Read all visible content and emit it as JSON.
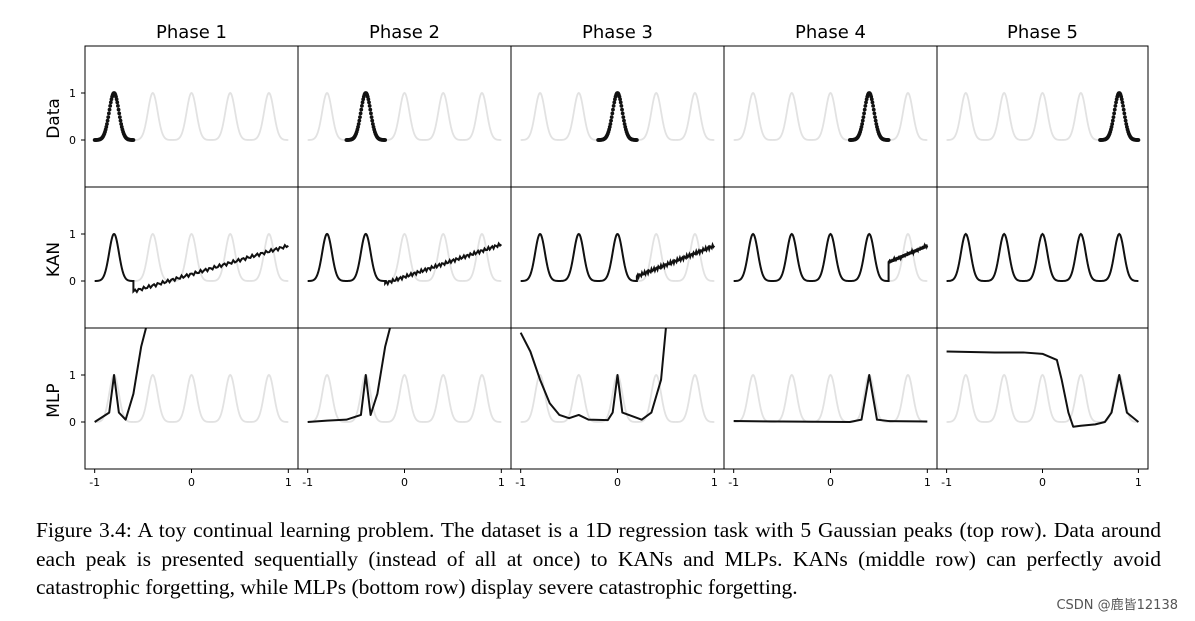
{
  "figure": {
    "phase_titles": [
      "Phase 1",
      "Phase 2",
      "Phase 3",
      "Phase 4",
      "Phase 5"
    ],
    "row_labels": [
      "Data",
      "KAN",
      "MLP"
    ],
    "x_tick_labels": [
      "-1",
      "0",
      "1"
    ],
    "y_tick_labels": [
      "0",
      "1"
    ]
  },
  "caption": {
    "text": "Figure 3.4: A toy continual learning problem. The dataset is a 1D regression task with 5 Gaussian peaks (top row). Data around each peak is presented sequentially (instead of all at once) to KANs and MLPs. KANs (middle row) can perfectly avoid catastrophic forgetting, while MLPs (bottom row) display severe catastrophic forgetting."
  },
  "watermark": "CSDN @鹿皆12138",
  "colors": {
    "ghost": "#e2e2e2",
    "line": "#111111"
  },
  "chart_data": {
    "type": "line",
    "title": "",
    "x_range": [
      -1.1,
      1.1
    ],
    "y_range": [
      -1.0,
      2.0
    ],
    "x_ticks": [
      -1,
      0,
      1
    ],
    "y_ticks": [
      0,
      1
    ],
    "gaussian_peaks": {
      "centers": [
        -0.8,
        -0.4,
        0.0,
        0.4,
        0.8
      ],
      "amplitude": 1,
      "sigma": 0.05
    },
    "rows": [
      {
        "name": "Data",
        "panels": [
          {
            "phase": 1,
            "points_range": [
              -1.0,
              -0.6
            ]
          },
          {
            "phase": 2,
            "points_range": [
              -0.6,
              -0.2
            ]
          },
          {
            "phase": 3,
            "points_range": [
              -0.2,
              0.2
            ]
          },
          {
            "phase": 4,
            "points_range": [
              0.2,
              0.6
            ]
          },
          {
            "phase": 5,
            "points_range": [
              0.6,
              1.0
            ]
          }
        ]
      },
      {
        "name": "KAN",
        "panels": [
          {
            "phase": 1,
            "fit_peaks": 1,
            "boundary": -0.6,
            "tail": [
              [
                -0.6,
                -0.22
              ],
              [
                1.0,
                0.75
              ]
            ]
          },
          {
            "phase": 2,
            "fit_peaks": 2,
            "boundary": -0.2,
            "tail": [
              [
                -0.2,
                -0.05
              ],
              [
                1.0,
                0.78
              ]
            ]
          },
          {
            "phase": 3,
            "fit_peaks": 3,
            "boundary": 0.2,
            "tail": [
              [
                0.2,
                0.1
              ],
              [
                1.0,
                0.75
              ]
            ]
          },
          {
            "phase": 4,
            "fit_peaks": 4,
            "boundary": 0.6,
            "tail": [
              [
                0.6,
                0.4
              ],
              [
                1.0,
                0.75
              ]
            ]
          },
          {
            "phase": 5,
            "fit_peaks": 5,
            "boundary": 1.0,
            "tail": []
          }
        ]
      },
      {
        "name": "MLP",
        "panels": [
          {
            "phase": 1,
            "curve": [
              [
                -1.0,
                0
              ],
              [
                -0.85,
                0.2
              ],
              [
                -0.8,
                1.0
              ],
              [
                -0.75,
                0.2
              ],
              [
                -0.68,
                0.05
              ],
              [
                -0.6,
                0.6
              ],
              [
                -0.52,
                1.6
              ],
              [
                -0.47,
                2.0
              ]
            ]
          },
          {
            "phase": 2,
            "curve": [
              [
                -1.0,
                0
              ],
              [
                -0.8,
                0.03
              ],
              [
                -0.6,
                0.05
              ],
              [
                -0.45,
                0.15
              ],
              [
                -0.4,
                1.0
              ],
              [
                -0.35,
                0.15
              ],
              [
                -0.28,
                0.6
              ],
              [
                -0.2,
                1.6
              ],
              [
                -0.15,
                2.0
              ]
            ]
          },
          {
            "phase": 3,
            "curve": [
              [
                -1.0,
                1.9
              ],
              [
                -0.9,
                1.5
              ],
              [
                -0.8,
                0.9
              ],
              [
                -0.7,
                0.4
              ],
              [
                -0.6,
                0.15
              ],
              [
                -0.5,
                0.08
              ],
              [
                -0.4,
                0.15
              ],
              [
                -0.3,
                0.05
              ],
              [
                -0.1,
                0.04
              ],
              [
                -0.05,
                0.2
              ],
              [
                0.0,
                1.0
              ],
              [
                0.05,
                0.2
              ],
              [
                0.25,
                0.05
              ],
              [
                0.35,
                0.2
              ],
              [
                0.45,
                0.9
              ],
              [
                0.5,
                2.0
              ]
            ]
          },
          {
            "phase": 4,
            "curve": [
              [
                -1.0,
                0.02
              ],
              [
                -0.5,
                0.01
              ],
              [
                0.2,
                0.0
              ],
              [
                0.32,
                0.05
              ],
              [
                0.4,
                1.0
              ],
              [
                0.48,
                0.05
              ],
              [
                0.6,
                0.02
              ],
              [
                1.0,
                0.01
              ]
            ]
          },
          {
            "phase": 5,
            "curve": [
              [
                -1.0,
                1.5
              ],
              [
                -0.5,
                1.48
              ],
              [
                -0.2,
                1.48
              ],
              [
                0.0,
                1.45
              ],
              [
                0.15,
                1.32
              ],
              [
                0.2,
                0.9
              ],
              [
                0.27,
                0.2
              ],
              [
                0.32,
                -0.1
              ],
              [
                0.4,
                -0.08
              ],
              [
                0.55,
                -0.05
              ],
              [
                0.65,
                0.0
              ],
              [
                0.72,
                0.2
              ],
              [
                0.8,
                1.0
              ],
              [
                0.88,
                0.2
              ],
              [
                1.0,
                0.0
              ]
            ]
          }
        ]
      }
    ]
  }
}
